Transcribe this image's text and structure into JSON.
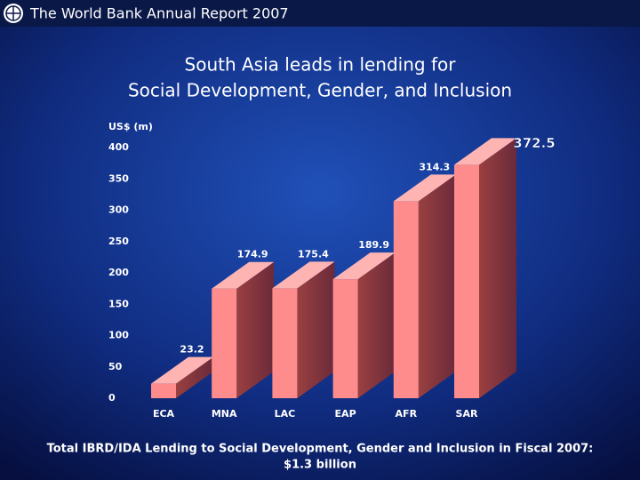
{
  "header": {
    "title": "The World Bank Annual Report 2007"
  },
  "chart_data": {
    "type": "bar",
    "title": "South Asia leads in lending for",
    "subtitle": "Social Development, Gender, and Inclusion",
    "y_label": "US$ (m)",
    "categories": [
      "ECA",
      "MNA",
      "LAC",
      "EAP",
      "AFR",
      "SAR"
    ],
    "values": [
      23.2,
      174.9,
      175.4,
      189.9,
      314.3,
      372.5
    ],
    "color": "#ff8c8c",
    "ylim": [
      0,
      400
    ],
    "yticks": [
      0,
      50,
      100,
      150,
      200,
      250,
      300,
      350,
      400
    ]
  },
  "footer": {
    "line1": "Total IBRD/IDA Lending to Social Development, Gender and Inclusion in Fiscal 2007:",
    "line2": "$1.3 billion"
  }
}
